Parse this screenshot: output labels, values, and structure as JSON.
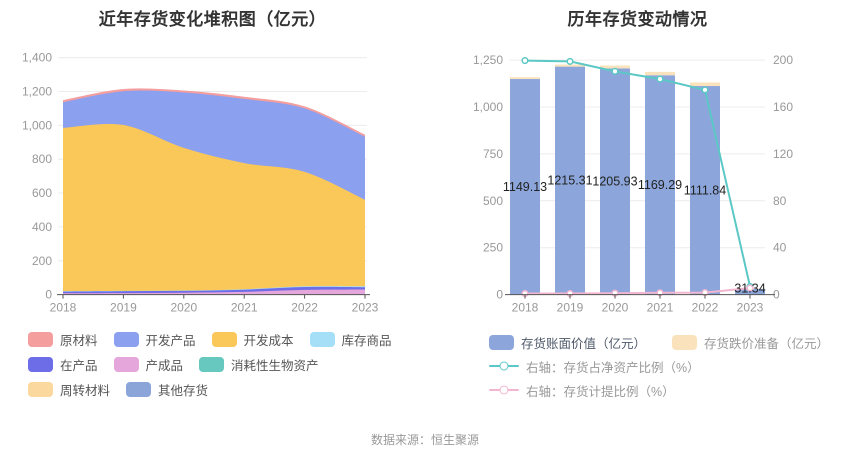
{
  "footer": {
    "source_note": "数据来源：恒生聚源"
  },
  "chart_data": [
    {
      "type": "area",
      "title": "近年存货变化堆积图（亿元）",
      "x": [
        "2018",
        "2019",
        "2020",
        "2021",
        "2022",
        "2023"
      ],
      "y_axis": {
        "values": [
          0,
          200,
          400,
          600,
          800,
          1000,
          1200,
          1400
        ],
        "labels": [
          "0",
          "200",
          "400",
          "600",
          "800",
          "1,000",
          "1,200",
          "1,400"
        ]
      },
      "ylim": [
        0,
        1400
      ],
      "grid": true,
      "legend_position": "bottom",
      "legend": [
        {
          "label": "原材料",
          "color": "#F49E9E"
        },
        {
          "label": "开发产品",
          "color": "#8BA0EF"
        },
        {
          "label": "开发成本",
          "color": "#FAC858"
        },
        {
          "label": "库存商品",
          "color": "#A5DFF7"
        },
        {
          "label": "在产品",
          "color": "#6E6DE8"
        },
        {
          "label": "产成品",
          "color": "#E5A6DC"
        },
        {
          "label": "消耗性生物资产",
          "color": "#66C8BE"
        },
        {
          "label": "周转材料",
          "color": "#FAD89E"
        },
        {
          "label": "其他存货",
          "color": "#8BA5D8"
        }
      ],
      "series": [
        {
          "name": "其他存货",
          "color": "#8BA5D8",
          "values": [
            0,
            0,
            0,
            0,
            0,
            0
          ]
        },
        {
          "name": "周转材料",
          "color": "#FAD89E",
          "values": [
            0,
            0,
            0,
            0,
            0,
            0
          ]
        },
        {
          "name": "消耗性生物资产",
          "color": "#66C8BE",
          "values": [
            0,
            0,
            0,
            0,
            0,
            0
          ]
        },
        {
          "name": "产成品",
          "color": "#E5A6DC",
          "values": [
            8,
            9,
            11,
            16,
            28,
            30
          ]
        },
        {
          "name": "在产品",
          "color": "#6E6DE8",
          "values": [
            10,
            11,
            11,
            13,
            17,
            14
          ]
        },
        {
          "name": "库存商品",
          "color": "#A5DFF7",
          "values": [
            2,
            2,
            2,
            3,
            4,
            5
          ]
        },
        {
          "name": "开发成本",
          "color": "#FAC858",
          "values": [
            965,
            980,
            843,
            745,
            676,
            511
          ]
        },
        {
          "name": "开发产品",
          "color": "#8BA0EF",
          "values": [
            152,
            200,
            327,
            379,
            375,
            373
          ]
        },
        {
          "name": "原材料",
          "color": "#F49E9E",
          "values": [
            12,
            13,
            12,
            13,
            12,
            12
          ]
        }
      ]
    },
    {
      "type": "bar",
      "title": "历年存货变动情况",
      "x": [
        "2018",
        "2019",
        "2020",
        "2021",
        "2022",
        "2023"
      ],
      "left_axis": {
        "values": [
          0,
          250,
          500,
          750,
          1000,
          1250
        ],
        "labels": [
          "0",
          "250",
          "500",
          "750",
          "1,000",
          "1,250"
        ],
        "lim": [
          0,
          1250
        ]
      },
      "right_axis": {
        "values": [
          0,
          40,
          80,
          120,
          160,
          200
        ],
        "labels": [
          "0",
          "40",
          "80",
          "120",
          "160",
          "200"
        ],
        "lim": [
          0,
          200
        ]
      },
      "grid": true,
      "bars": [
        {
          "name": "存货账面价值（亿元）",
          "color": "#8CA6DB",
          "values": [
            1149.13,
            1215.31,
            1205.93,
            1169.29,
            1111.84,
            31.34
          ],
          "labels": [
            "1149.13",
            "1215.31",
            "1205.93",
            "1169.29",
            "1111.84",
            "31.34"
          ]
        },
        {
          "name": "存货跌价准备（亿元）",
          "color": "#FAE3BC",
          "values": [
            10,
            11,
            15,
            18,
            19,
            0.5
          ]
        }
      ],
      "lines": [
        {
          "name": "右轴：存货占净资产比例（%）",
          "color": "#5CC8C6",
          "axis": "right",
          "values": [
            199.6,
            198.9,
            190.4,
            183.8,
            174.6,
            7
          ]
        },
        {
          "name": "右轴：存货计提比例（%）",
          "color": "#F2B6D0",
          "axis": "right",
          "values": [
            0.9,
            0.9,
            1.2,
            1.5,
            1.7,
            5.6
          ]
        }
      ],
      "legend": [
        {
          "kind": "rect",
          "label": "存货账面价值（亿元）",
          "color": "#8CA6DB",
          "text_color": "#4E5969"
        },
        {
          "kind": "rect",
          "label": "存货跌价准备（亿元）",
          "color": "#FAE3BC",
          "text_color": "#999999"
        },
        {
          "kind": "line",
          "label": "右轴：存货占净资产比例（%）",
          "color": "#5CC8C6",
          "text_color": "#999999"
        },
        {
          "kind": "line",
          "label": "右轴：存货计提比例（%）",
          "color": "#F2B6D0",
          "text_color": "#999999"
        }
      ]
    }
  ]
}
